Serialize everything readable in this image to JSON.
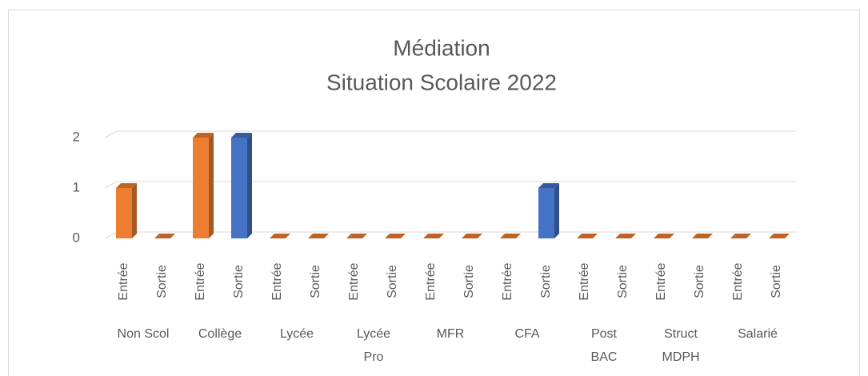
{
  "chart_data": {
    "type": "bar3d",
    "title": "Médiation",
    "subtitle": "Situation Scolaire 2022",
    "categories": [
      "Entrée",
      "Sortie",
      "Entrée",
      "Sortie",
      "Entrée",
      "Sortie",
      "Entrée",
      "Sortie",
      "Entrée",
      "Sortie",
      "Entrée",
      "Sortie",
      "Entrée",
      "Sortie",
      "Entrée",
      "Sortie",
      "Entrée",
      "Sortie"
    ],
    "groups": [
      {
        "label": [
          "Non Scol"
        ]
      },
      {
        "label": [
          "Collège"
        ]
      },
      {
        "label": [
          "Lycée"
        ]
      },
      {
        "label": [
          "Lycée",
          "Pro"
        ]
      },
      {
        "label": [
          "MFR"
        ]
      },
      {
        "label": [
          "CFA"
        ]
      },
      {
        "label": [
          "Post",
          "BAC"
        ]
      },
      {
        "label": [
          "Struct",
          "MDPH"
        ]
      },
      {
        "label": [
          "Salarié"
        ]
      }
    ],
    "values": [
      1,
      0,
      2,
      2,
      0,
      0,
      0,
      0,
      0,
      0,
      0,
      1,
      0,
      0,
      0,
      0,
      0,
      0
    ],
    "colors": [
      "#ED7D31",
      "#ED7D31",
      "#ED7D31",
      "#4472C4",
      "#ED7D31",
      "#ED7D31",
      "#ED7D31",
      "#ED7D31",
      "#ED7D31",
      "#ED7D31",
      "#ED7D31",
      "#4472C4",
      "#ED7D31",
      "#ED7D31",
      "#ED7D31",
      "#ED7D31",
      "#ED7D31",
      "#ED7D31"
    ],
    "ylim": [
      0,
      2
    ],
    "yticks": [
      0,
      1,
      2
    ],
    "grid": true
  }
}
